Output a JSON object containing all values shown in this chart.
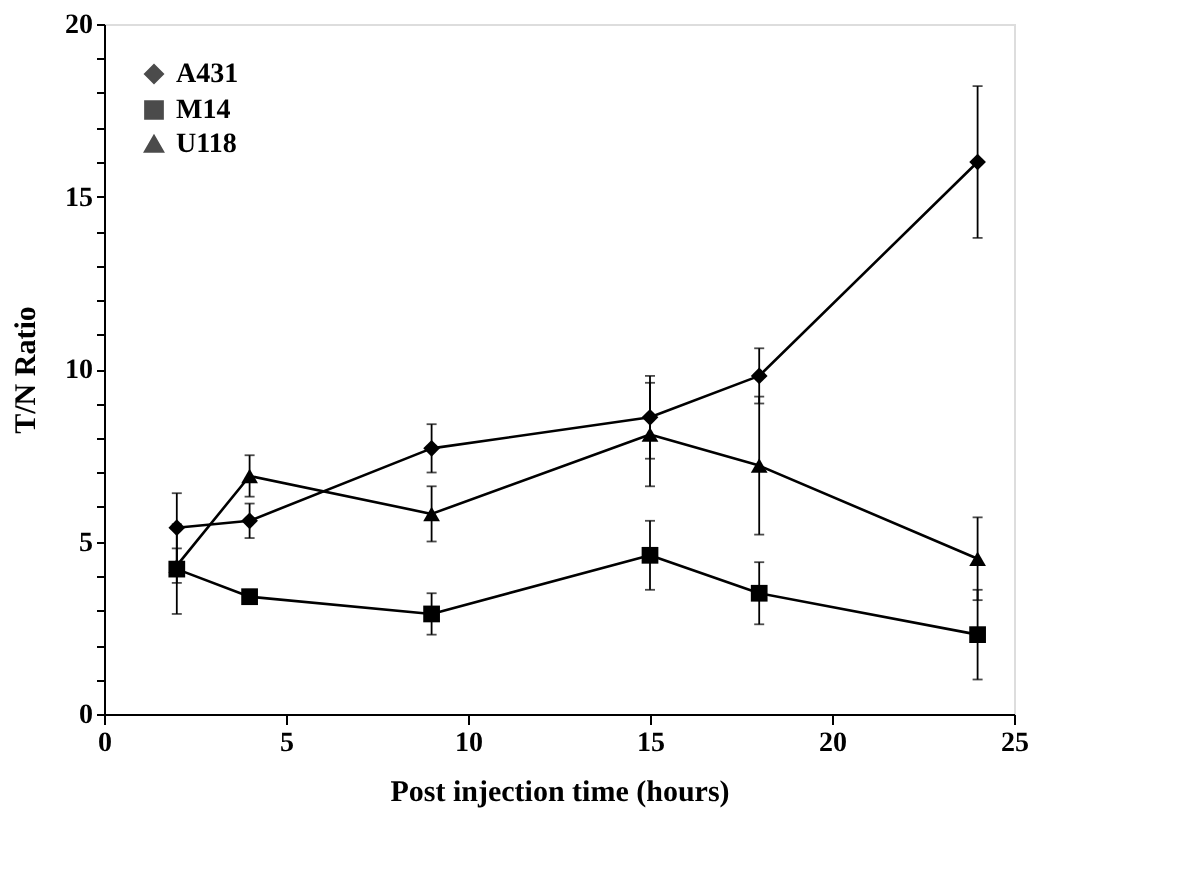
{
  "chart_data": {
    "type": "line",
    "xlabel": "Post injection time (hours)",
    "ylabel": "T/N Ratio",
    "x": [
      2,
      4,
      9,
      15,
      18,
      24
    ],
    "series": [
      {
        "name": "A431",
        "color": "#000000",
        "marker": "diamond",
        "values": [
          5.4,
          5.6,
          7.7,
          8.6,
          9.8,
          16.0
        ],
        "errors": [
          1.0,
          0.5,
          0.7,
          1.2,
          0.8,
          2.2
        ]
      },
      {
        "name": "M14",
        "color": "#000000",
        "marker": "square",
        "values": [
          4.2,
          3.4,
          2.9,
          4.6,
          3.5,
          2.3
        ],
        "errors": [
          1.3,
          0.2,
          0.6,
          1.0,
          0.9,
          1.3
        ]
      },
      {
        "name": "U118",
        "color": "#000000",
        "marker": "triangle",
        "values": [
          4.3,
          6.9,
          5.8,
          8.1,
          7.2,
          4.5
        ],
        "errors": [
          0.5,
          0.6,
          0.8,
          1.5,
          2.0,
          1.2
        ]
      }
    ],
    "xlim": [
      0,
      25
    ],
    "xticks": [
      0,
      5,
      10,
      15,
      20,
      25
    ],
    "ylim": [
      0,
      20
    ],
    "yticks": [
      0,
      {
        "value": 1,
        "label": null
      },
      {
        "value": 2,
        "label": null
      },
      {
        "value": 3,
        "label": null
      },
      {
        "value": 4,
        "label": null
      },
      5,
      {
        "value": 6,
        "label": null
      },
      {
        "value": 7,
        "label": null
      },
      {
        "value": 8,
        "label": null
      },
      {
        "value": 9,
        "label": null
      },
      10,
      {
        "value": 11,
        "label": null
      },
      {
        "value": 12,
        "label": null
      },
      {
        "value": 13,
        "label": null
      },
      {
        "value": 14,
        "label": null
      },
      15,
      {
        "value": 16,
        "label": null
      },
      {
        "value": 17,
        "label": null
      },
      {
        "value": 18,
        "label": null
      },
      {
        "value": 19,
        "label": null
      },
      20
    ],
    "legend": "top left",
    "grid": false,
    "line_style": "solid"
  }
}
